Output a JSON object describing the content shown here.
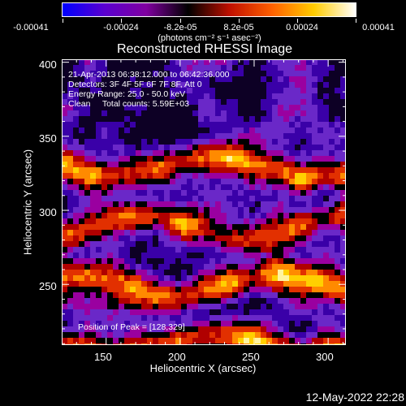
{
  "colorbar": {
    "ticks": [
      "-0.00041",
      "-0.00024",
      "-8.2e-05",
      "8.2e-05",
      "0.00024",
      "0.00041"
    ],
    "units": "(photons cm⁻² s⁻¹ asec⁻²)",
    "gradient": [
      "#0000ff",
      "#5a00d0",
      "#8000a0",
      "#000000",
      "#c01000",
      "#ff6000",
      "#ffcc00",
      "#ffffff"
    ]
  },
  "title": "Reconstructed RHESSI Image",
  "info": {
    "line1": "21-Apr-2013 06:38:12.000 to 06:42:36.000",
    "line2": "Detectors: 3F 4F 5F 6F 7F 8F, Att 0",
    "line3": "Energy Range: 25.0 - 50.0 keV",
    "line4": "Clean     Total counts: 5.59E+03"
  },
  "peak": "Position of Peak = [128,329]",
  "axes": {
    "xlabel": "Heliocentric X (arcsec)",
    "ylabel": "Heliocentric Y (arcsec)",
    "xticks": [
      "150",
      "200",
      "250",
      "300"
    ],
    "yticks": [
      "250",
      "300",
      "350",
      "400"
    ],
    "xtick_values": [
      150,
      200,
      250,
      300
    ],
    "ytick_values": [
      250,
      300,
      350,
      400
    ],
    "xlim": [
      120,
      312
    ],
    "ylim": [
      209,
      402
    ]
  },
  "footer": {
    "timestamp": "12-May-2022 22:28"
  },
  "image_colors": {
    "bands": [
      "#0d0025",
      "#3a00a8",
      "#6a28c8",
      "#9a00a0",
      "#000000",
      "#b00000",
      "#e23000",
      "#ff8a00",
      "#ffd000",
      "#fff4a0"
    ]
  }
}
